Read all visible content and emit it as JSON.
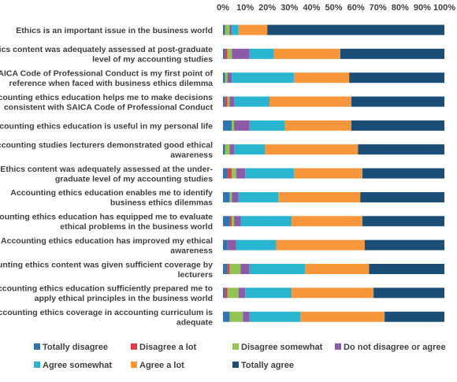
{
  "chart_data": {
    "type": "bar",
    "orientation": "horizontal",
    "stacked": "percent",
    "xlim": [
      0,
      100
    ],
    "x_ticks": [
      "0%",
      "10%",
      "20%",
      "30%",
      "40%",
      "50%",
      "60%",
      "70%",
      "80%",
      "90%",
      "100%"
    ],
    "grid": false,
    "legend_position": "bottom",
    "categories": [
      [
        "Ethics is an important issue in the business world"
      ],
      [
        "Ethics content was adequately assessed at post-graduate",
        "level of my accounting studies"
      ],
      [
        "SAICA Code of Professional Conduct is my first point of",
        "reference when faced with business ethics dilemma"
      ],
      [
        "Accounting ethics education helps me to make decisions",
        "consistent with SAICA Code of Professional Conduct"
      ],
      [
        "Accounting ethics education is useful in my personal life"
      ],
      [
        "Accounting studies lecturers demonstrated good ethical",
        "awareness"
      ],
      [
        "Ethics content was adequately assessed at the under-",
        "graduate level of my accounting studies"
      ],
      [
        "Accounting ethics education enables me to identify",
        "business ethics dilemmas"
      ],
      [
        "Accounting ethics education has equipped me to evaluate",
        "ethical problems in the business world"
      ],
      [
        "Accounting ethics education has improved my ethical",
        "awareness"
      ],
      [
        "Accounting ethics content was given sufficient coverage by",
        "lecturers"
      ],
      [
        "Accounting ethics education sufficiently prepared me to",
        "apply ethical principles in the business world"
      ],
      [
        "Accounting ethics coverage in accounting curriculum is",
        "adequate"
      ]
    ],
    "series": [
      {
        "name": "Totally disagree",
        "color": "#2e75b6",
        "values": [
          1,
          1,
          1,
          1,
          4,
          1,
          2,
          3,
          3,
          2,
          2,
          1,
          3
        ]
      },
      {
        "name": "Disagree a lot",
        "color": "#e0404a",
        "values": [
          0,
          1,
          0,
          1,
          0,
          0,
          2,
          0,
          1,
          0,
          1,
          1,
          0
        ]
      },
      {
        "name": "Disagree somewhat",
        "color": "#92c353",
        "values": [
          2,
          2,
          1,
          1,
          1,
          2,
          2,
          1,
          1,
          0,
          5,
          5,
          6
        ]
      },
      {
        "name": "Do not disagree or agree",
        "color": "#8b5ba8",
        "values": [
          1,
          8,
          2,
          2,
          7,
          2,
          4,
          3,
          3,
          4,
          4,
          3,
          3
        ]
      },
      {
        "name": "Agree somewhat",
        "color": "#29b5d0",
        "values": [
          3,
          11,
          28,
          16,
          16,
          14,
          22,
          18,
          23,
          18,
          25,
          21,
          23
        ]
      },
      {
        "name": "Agree a lot",
        "color": "#f7963a",
        "values": [
          13,
          30,
          25,
          37,
          30,
          42,
          31,
          37,
          32,
          40,
          29,
          37,
          38
        ]
      },
      {
        "name": "Totally agree",
        "color": "#1b4e77",
        "values": [
          80,
          47,
          43,
          42,
          42,
          39,
          37,
          38,
          37,
          36,
          34,
          32,
          27
        ]
      }
    ]
  }
}
